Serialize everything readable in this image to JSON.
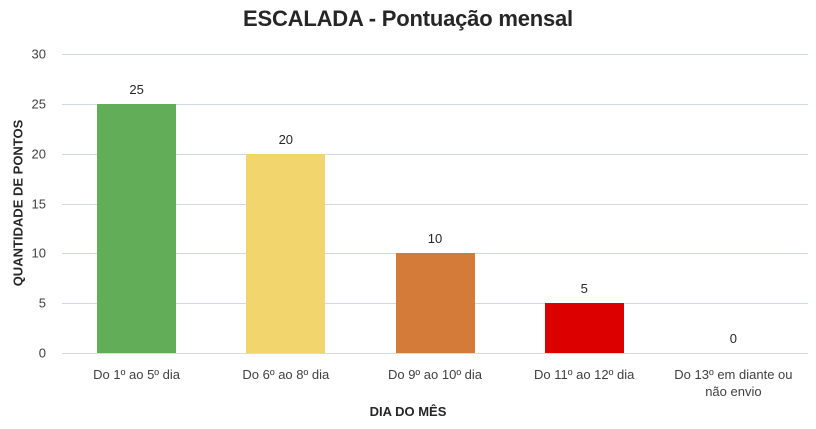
{
  "chart_data": {
    "type": "bar",
    "title": "ESCALADA - Pontuação mensal",
    "xlabel": "DIA DO MÊS",
    "ylabel": "QUANTIDADE DE PONTOS",
    "categories": [
      "Do 1º ao 5º dia",
      "Do 6º ao 8º dia",
      "Do 9º ao 10º dia",
      "Do 11º ao 12º dia",
      "Do 13º em diante ou não envio"
    ],
    "values": [
      25,
      20,
      10,
      5,
      0
    ],
    "colors": [
      "#62ad58",
      "#f3d56e",
      "#d47b3a",
      "#dc0000",
      "#ffffff"
    ],
    "ylim": [
      0,
      30
    ],
    "yticks": [
      0,
      5,
      10,
      15,
      20,
      25,
      30
    ],
    "grid": true,
    "legend": "none",
    "data_labels": true
  },
  "labels": {
    "title": "ESCALADA - Pontuação mensal",
    "xlabel": "DIA DO MÊS",
    "ylabel": "QUANTIDADE DE PONTOS",
    "yticks": [
      "0",
      "5",
      "10",
      "15",
      "20",
      "25",
      "30"
    ],
    "categories": [
      "Do 1º ao 5º dia",
      "Do 6º ao 8º dia",
      "Do 9º ao 10º dia",
      "Do 11º ao 12º dia",
      "Do 13º em diante ou\nnão envio"
    ],
    "data_labels": [
      "25",
      "20",
      "10",
      "5",
      "0"
    ]
  }
}
